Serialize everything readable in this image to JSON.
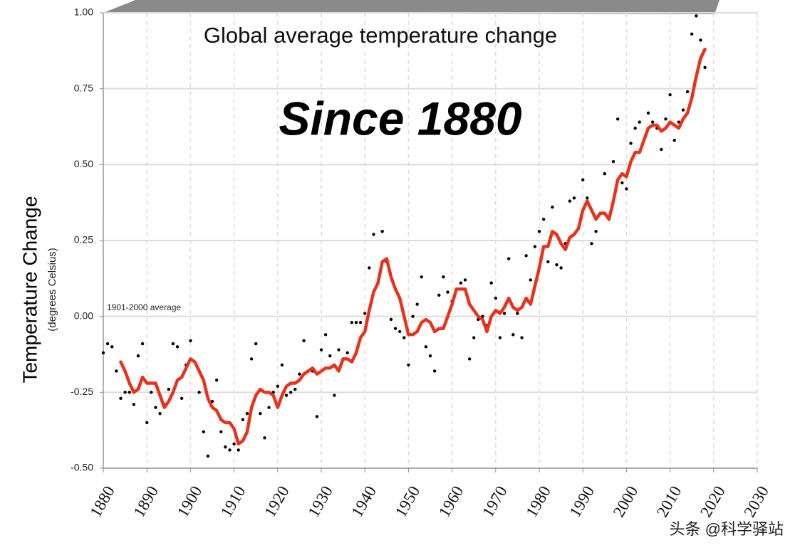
{
  "chart_data": {
    "type": "line",
    "title": "Global average temperature change",
    "subtitle": "Since 1880",
    "y_label": "Temperature Change",
    "y_sublabel": "(degrees Celsius)",
    "annotation": "1901-2000 average",
    "watermark": "头条 @科学驿站",
    "xlim": [
      1880,
      2030
    ],
    "xticks": [
      1880,
      1890,
      1900,
      1910,
      1920,
      1930,
      1940,
      1950,
      1960,
      1970,
      1980,
      1990,
      2000,
      2010,
      2020,
      2030
    ],
    "ylim": [
      -0.5,
      1.0
    ],
    "yticks": [
      {
        "value": -0.5,
        "label": "-0.50"
      },
      {
        "value": -0.25,
        "label": "-0.25"
      },
      {
        "value": 0,
        "label": "0.00"
      },
      {
        "value": 0.25,
        "label": "0.25"
      },
      {
        "value": 0.5,
        "label": "0.50"
      },
      {
        "value": 0.75,
        "label": "0.75"
      },
      {
        "value": 1.0,
        "label": "1.00"
      }
    ],
    "grid": true,
    "series": [
      {
        "color": "#000000",
        "marker": "dot",
        "x": [
          1880,
          1881,
          1882,
          1883,
          1884,
          1885,
          1886,
          1887,
          1888,
          1889,
          1890,
          1891,
          1892,
          1893,
          1894,
          1895,
          1896,
          1897,
          1898,
          1899,
          1900,
          1901,
          1902,
          1903,
          1904,
          1905,
          1906,
          1907,
          1908,
          1909,
          1910,
          1911,
          1912,
          1913,
          1914,
          1915,
          1916,
          1917,
          1918,
          1919,
          1920,
          1921,
          1922,
          1923,
          1924,
          1925,
          1926,
          1927,
          1928,
          1929,
          1930,
          1931,
          1932,
          1933,
          1934,
          1935,
          1936,
          1937,
          1938,
          1939,
          1940,
          1941,
          1942,
          1943,
          1944,
          1945,
          1946,
          1947,
          1948,
          1949,
          1950,
          1951,
          1952,
          1953,
          1954,
          1955,
          1956,
          1957,
          1958,
          1959,
          1960,
          1961,
          1962,
          1963,
          1964,
          1965,
          1966,
          1967,
          1968,
          1969,
          1970,
          1971,
          1972,
          1973,
          1974,
          1975,
          1976,
          1977,
          1978,
          1979,
          1980,
          1981,
          1982,
          1983,
          1984,
          1985,
          1986,
          1987,
          1988,
          1989,
          1990,
          1991,
          1992,
          1993,
          1994,
          1995,
          1996,
          1997,
          1998,
          1999,
          2000,
          2001,
          2002,
          2003,
          2004,
          2005,
          2006,
          2007,
          2008,
          2009,
          2010,
          2011,
          2012,
          2013,
          2014,
          2015,
          2016,
          2017,
          2018
        ],
        "values": [
          -0.12,
          -0.09,
          -0.1,
          -0.18,
          -0.27,
          -0.25,
          -0.25,
          -0.29,
          -0.13,
          -0.09,
          -0.35,
          -0.25,
          -0.3,
          -0.32,
          -0.29,
          -0.24,
          -0.09,
          -0.1,
          -0.27,
          -0.16,
          -0.08,
          -0.15,
          -0.25,
          -0.38,
          -0.46,
          -0.28,
          -0.21,
          -0.38,
          -0.43,
          -0.44,
          -0.42,
          -0.44,
          -0.34,
          -0.32,
          -0.14,
          -0.09,
          -0.32,
          -0.4,
          -0.3,
          -0.25,
          -0.23,
          -0.16,
          -0.26,
          -0.25,
          -0.24,
          -0.19,
          -0.08,
          -0.18,
          -0.18,
          -0.33,
          -0.11,
          -0.06,
          -0.13,
          -0.26,
          -0.11,
          -0.14,
          -0.12,
          -0.02,
          -0.02,
          -0.02,
          0.01,
          0.16,
          0.27,
          0.11,
          0.28,
          0.18,
          -0.01,
          -0.04,
          -0.05,
          -0.07,
          -0.16,
          0.0,
          0.04,
          0.13,
          -0.1,
          -0.13,
          -0.18,
          0.07,
          0.13,
          0.08,
          0.05,
          0.09,
          0.11,
          0.12,
          -0.14,
          -0.07,
          -0.01,
          0.0,
          -0.03,
          0.11,
          0.06,
          -0.07,
          0.01,
          0.19,
          -0.06,
          0.01,
          -0.07,
          0.2,
          0.12,
          0.23,
          0.28,
          0.32,
          0.18,
          0.36,
          0.17,
          0.16,
          0.24,
          0.38,
          0.39,
          0.29,
          0.45,
          0.39,
          0.24,
          0.28,
          0.34,
          0.47,
          0.32,
          0.51,
          0.65,
          0.44,
          0.42,
          0.57,
          0.62,
          0.64,
          0.58,
          0.67,
          0.64,
          0.62,
          0.55,
          0.65,
          0.73,
          0.58,
          0.64,
          0.68,
          0.74,
          0.93,
          0.99,
          0.91,
          0.82
        ]
      },
      {
        "color": "#e8321c",
        "marker": "none",
        "x": [
          1884,
          1885,
          1886,
          1887,
          1888,
          1889,
          1890,
          1891,
          1892,
          1893,
          1894,
          1895,
          1896,
          1897,
          1898,
          1899,
          1900,
          1901,
          1902,
          1903,
          1904,
          1905,
          1906,
          1907,
          1908,
          1909,
          1910,
          1911,
          1912,
          1913,
          1914,
          1915,
          1916,
          1917,
          1918,
          1919,
          1920,
          1921,
          1922,
          1923,
          1924,
          1925,
          1926,
          1927,
          1928,
          1929,
          1930,
          1931,
          1932,
          1933,
          1934,
          1935,
          1936,
          1937,
          1938,
          1939,
          1940,
          1941,
          1942,
          1943,
          1944,
          1945,
          1946,
          1947,
          1948,
          1949,
          1950,
          1951,
          1952,
          1953,
          1954,
          1955,
          1956,
          1957,
          1958,
          1959,
          1960,
          1961,
          1962,
          1963,
          1964,
          1965,
          1966,
          1967,
          1968,
          1969,
          1970,
          1971,
          1972,
          1973,
          1974,
          1975,
          1976,
          1977,
          1978,
          1979,
          1980,
          1981,
          1982,
          1983,
          1984,
          1985,
          1986,
          1987,
          1988,
          1989,
          1990,
          1991,
          1992,
          1993,
          1994,
          1995,
          1996,
          1997,
          1998,
          1999,
          2000,
          2001,
          2002,
          2003,
          2004,
          2005,
          2006,
          2007,
          2008,
          2009,
          2010,
          2011,
          2012,
          2013,
          2014,
          2015,
          2016,
          2017,
          2018
        ],
        "values": [
          -0.15,
          -0.18,
          -0.22,
          -0.25,
          -0.24,
          -0.2,
          -0.22,
          -0.22,
          -0.22,
          -0.26,
          -0.3,
          -0.28,
          -0.25,
          -0.21,
          -0.2,
          -0.17,
          -0.14,
          -0.15,
          -0.18,
          -0.21,
          -0.27,
          -0.3,
          -0.31,
          -0.34,
          -0.35,
          -0.35,
          -0.37,
          -0.42,
          -0.41,
          -0.38,
          -0.3,
          -0.26,
          -0.24,
          -0.25,
          -0.25,
          -0.26,
          -0.3,
          -0.26,
          -0.23,
          -0.22,
          -0.22,
          -0.21,
          -0.19,
          -0.18,
          -0.17,
          -0.19,
          -0.18,
          -0.17,
          -0.17,
          -0.16,
          -0.18,
          -0.14,
          -0.14,
          -0.15,
          -0.12,
          -0.07,
          -0.05,
          0.02,
          0.08,
          0.11,
          0.18,
          0.19,
          0.13,
          0.09,
          0.06,
          0.0,
          -0.06,
          -0.06,
          -0.05,
          -0.02,
          -0.01,
          -0.02,
          -0.05,
          -0.04,
          -0.04,
          0.0,
          0.04,
          0.09,
          0.09,
          0.09,
          0.04,
          0.02,
          0.0,
          -0.01,
          -0.05,
          0.0,
          0.02,
          0.01,
          0.03,
          0.06,
          0.03,
          0.02,
          0.03,
          0.06,
          0.04,
          0.1,
          0.16,
          0.23,
          0.23,
          0.28,
          0.27,
          0.24,
          0.22,
          0.26,
          0.27,
          0.29,
          0.35,
          0.38,
          0.35,
          0.32,
          0.34,
          0.34,
          0.32,
          0.38,
          0.45,
          0.47,
          0.46,
          0.51,
          0.54,
          0.54,
          0.58,
          0.62,
          0.63,
          0.63,
          0.61,
          0.62,
          0.64,
          0.63,
          0.62,
          0.65,
          0.67,
          0.72,
          0.79,
          0.85,
          0.88
        ]
      }
    ]
  }
}
